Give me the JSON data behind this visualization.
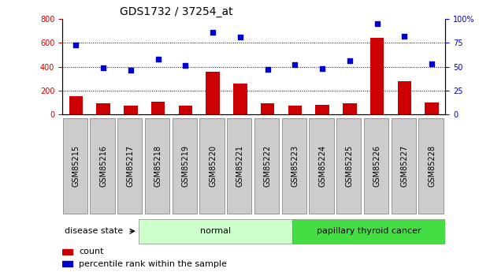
{
  "title": "GDS1732 / 37254_at",
  "samples": [
    "GSM85215",
    "GSM85216",
    "GSM85217",
    "GSM85218",
    "GSM85219",
    "GSM85220",
    "GSM85221",
    "GSM85222",
    "GSM85223",
    "GSM85224",
    "GSM85225",
    "GSM85226",
    "GSM85227",
    "GSM85228"
  ],
  "counts": [
    150,
    90,
    75,
    105,
    75,
    355,
    255,
    90,
    75,
    80,
    95,
    640,
    280,
    100
  ],
  "percentiles": [
    73,
    49,
    46,
    58,
    51,
    86,
    81,
    47,
    52,
    48,
    56,
    95,
    82,
    53
  ],
  "normal_indices": [
    0,
    1,
    2,
    3,
    4,
    5,
    6
  ],
  "cancer_indices": [
    7,
    8,
    9,
    10,
    11,
    12,
    13
  ],
  "bar_color": "#cc0000",
  "dot_color": "#0000cc",
  "normal_bg": "#ccffcc",
  "cancer_bg": "#44dd44",
  "xlabel_bg": "#cccccc",
  "left_ylim": [
    0,
    800
  ],
  "left_yticks": [
    0,
    200,
    400,
    600,
    800
  ],
  "right_ylim": [
    0,
    100
  ],
  "right_yticks": [
    0,
    25,
    50,
    75,
    100
  ],
  "right_yticklabels": [
    "0",
    "25",
    "50",
    "75",
    "100%"
  ],
  "grid_values": [
    200,
    400,
    600
  ],
  "legend_count_label": "count",
  "legend_pct_label": "percentile rank within the sample",
  "disease_state_label": "disease state",
  "normal_label": "normal",
  "cancer_label": "papillary thyroid cancer",
  "title_fontsize": 10,
  "tick_fontsize": 7,
  "label_fontsize": 8
}
